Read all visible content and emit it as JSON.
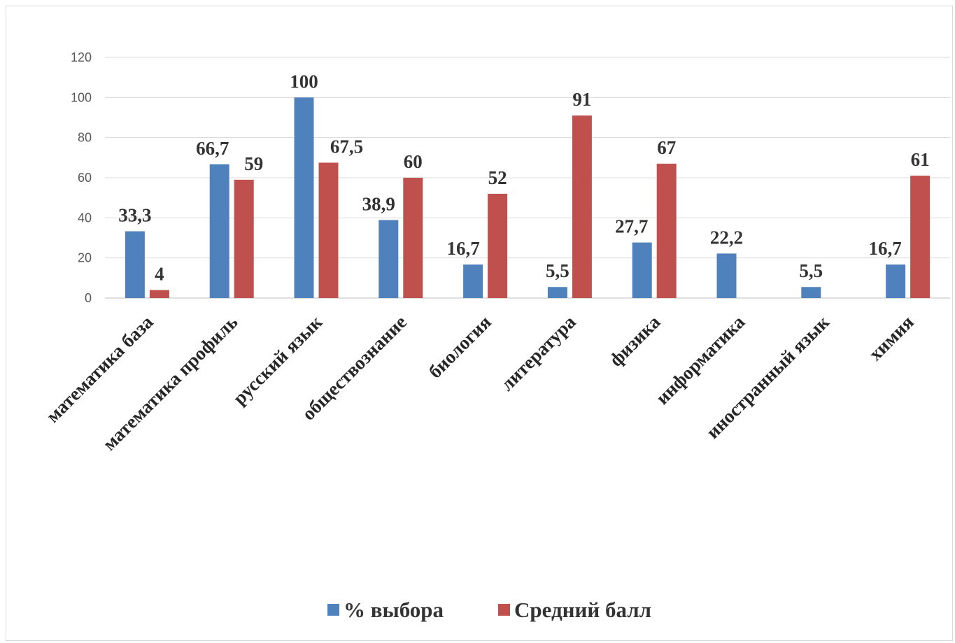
{
  "chart_data": {
    "type": "bar",
    "categories": [
      "математика база",
      "математика профиль",
      "русский язык",
      "обществознание",
      "биология",
      "литература",
      "физика",
      "информатика",
      "иностранный язык",
      "химия"
    ],
    "series": [
      {
        "name": "% выбора",
        "color": "#4f81bd",
        "values": [
          33.3,
          66.7,
          100,
          38.9,
          16.7,
          5.5,
          27.7,
          22.2,
          5.5,
          16.7
        ],
        "labels": [
          "33,3",
          "66,7",
          "100",
          "38,9",
          "16,7",
          "5,5",
          "27,7",
          "22,2",
          "5,5",
          "16,7"
        ]
      },
      {
        "name": "Средний балл",
        "color": "#c0504d",
        "values": [
          4,
          59,
          67.5,
          60,
          52,
          91,
          67,
          null,
          null,
          61
        ],
        "labels": [
          "4",
          "59",
          "67,5",
          "60",
          "52",
          "91",
          "67",
          "",
          "",
          "61"
        ]
      }
    ],
    "y_ticks": [
      "0",
      "20",
      "40",
      "60",
      "80",
      "100",
      "120"
    ],
    "ylim": [
      0,
      120
    ],
    "grid": true,
    "legend_position": "bottom"
  }
}
